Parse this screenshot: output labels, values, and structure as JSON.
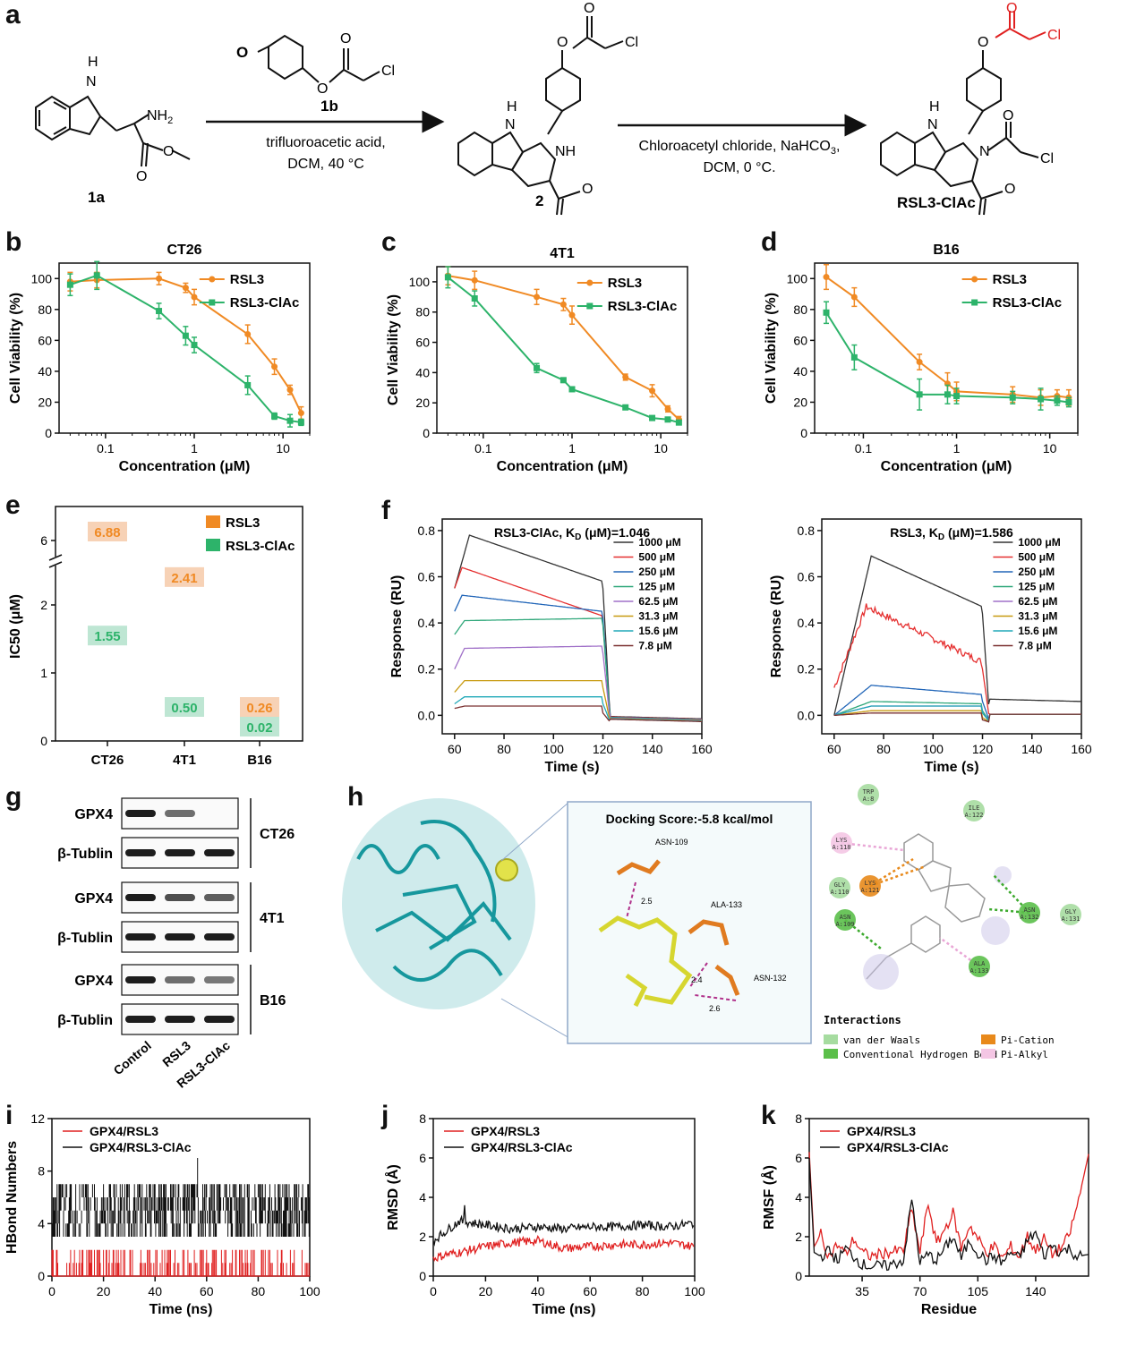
{
  "panels": {
    "a": "a",
    "b": "b",
    "c": "c",
    "d": "d",
    "e": "e",
    "f": "f",
    "g": "g",
    "h": "h",
    "i": "i",
    "j": "j",
    "k": "k"
  },
  "scheme": {
    "compound_1a": "1a",
    "compound_1b": "1b",
    "compound_2": "2",
    "product": "RSL3-ClAc",
    "nh2": "NH",
    "nh2_sub": "2",
    "nh": "NH",
    "h": "H",
    "n": "N",
    "o": "O",
    "cl": "Cl",
    "step1_line1": "trifluoroacetic acid,",
    "step1_line2": "DCM, 40 °C",
    "step2_line1": "Chloroacetyl chloride, NaHCO",
    "step2_line1_sub": "3",
    "step2_line1_end": ",",
    "step2_line2": "DCM, 0 °C."
  },
  "colors": {
    "rsl3": "#F08A24",
    "rsl3_clac": "#2DB36A",
    "red": "#E02020",
    "black": "#111111",
    "teal": "#1A9AA0",
    "label_orange_bg": "#F7D2B6",
    "label_green_bg": "#BEE6D3"
  },
  "viability": {
    "xlabel": "Concentration (μM)",
    "ylabel": "Cell Viability (%)",
    "legend": [
      "RSL3",
      "RSL3-ClAc"
    ]
  },
  "chart_data": [
    {
      "panel": "b",
      "type": "line",
      "title": "CT26",
      "xlabel": "Concentration (μM)",
      "ylabel": "Cell Viability (%)",
      "xscale": "log",
      "xlim": [
        0.03,
        20
      ],
      "ylim": [
        0,
        110
      ],
      "xticks": [
        "0.1",
        "1",
        "10"
      ],
      "yticks": [
        0,
        20,
        40,
        60,
        80,
        100
      ],
      "legend_position": "top-right",
      "series": [
        {
          "name": "RSL3",
          "x": [
            0.04,
            0.08,
            0.4,
            0.8,
            1,
            4,
            8,
            12,
            16
          ],
          "y": [
            98,
            99,
            100,
            94,
            88,
            64,
            43,
            28,
            13
          ],
          "err": [
            6,
            5,
            4,
            3,
            5,
            6,
            5,
            3,
            4
          ]
        },
        {
          "name": "RSL3-ClAc",
          "x": [
            0.04,
            0.08,
            0.4,
            0.8,
            1,
            4,
            8,
            12,
            16
          ],
          "y": [
            96,
            102,
            79,
            63,
            57,
            31,
            11,
            8,
            7
          ],
          "err": [
            7,
            9,
            5,
            6,
            5,
            6,
            2,
            4,
            2
          ]
        }
      ]
    },
    {
      "panel": "c",
      "type": "line",
      "title": "4T1",
      "xlabel": "Concentration (μM)",
      "ylabel": "Cell Viability (%)",
      "xscale": "log",
      "xlim": [
        0.03,
        20
      ],
      "ylim": [
        0,
        110
      ],
      "xticks": [
        "0.1",
        "1",
        "10"
      ],
      "yticks": [
        0,
        20,
        40,
        60,
        80,
        100
      ],
      "legend_position": "top-right",
      "series": [
        {
          "name": "RSL3",
          "x": [
            0.04,
            0.08,
            0.4,
            0.8,
            1,
            4,
            8,
            12,
            16
          ],
          "y": [
            104,
            101,
            90,
            85,
            78,
            37,
            28,
            16,
            9
          ],
          "err": [
            6,
            6,
            5,
            4,
            6,
            2,
            4,
            2,
            2
          ]
        },
        {
          "name": "RSL3-ClAc",
          "x": [
            0.04,
            0.08,
            0.4,
            0.8,
            1,
            4,
            8,
            12,
            16
          ],
          "y": [
            103,
            89,
            43,
            35,
            29,
            17,
            10,
            9,
            7
          ],
          "err": [
            7,
            5,
            3,
            1,
            1,
            1,
            1,
            1,
            1
          ]
        }
      ]
    },
    {
      "panel": "d",
      "type": "line",
      "title": "B16",
      "xlabel": "Concentration (μM)",
      "ylabel": "Cell Viability (%)",
      "xscale": "log",
      "xlim": [
        0.03,
        20
      ],
      "ylim": [
        0,
        110
      ],
      "xticks": [
        "0.1",
        "1",
        "10"
      ],
      "yticks": [
        0,
        20,
        40,
        60,
        80,
        100
      ],
      "legend_position": "top-right",
      "series": [
        {
          "name": "RSL3",
          "x": [
            0.04,
            0.08,
            0.4,
            0.8,
            1,
            4,
            8,
            12,
            16
          ],
          "y": [
            101,
            88,
            46,
            32,
            27,
            25,
            23,
            24,
            23
          ],
          "err": [
            8,
            6,
            5,
            7,
            6,
            5,
            5,
            4,
            5
          ]
        },
        {
          "name": "RSL3-ClAc",
          "x": [
            0.04,
            0.08,
            0.4,
            0.8,
            1,
            4,
            8,
            12,
            16
          ],
          "y": [
            78,
            49,
            25,
            25,
            24,
            23,
            22,
            21,
            20
          ],
          "err": [
            7,
            8,
            10,
            6,
            5,
            4,
            7,
            3,
            3
          ]
        }
      ]
    },
    {
      "panel": "e",
      "type": "table",
      "ylabel": "IC50 (μM)",
      "categories": [
        "CT26",
        "4T1",
        "B16"
      ],
      "yticks_lower": [
        0,
        1,
        2
      ],
      "ytick_upper": 6,
      "legend_position": "top-right",
      "series": [
        {
          "name": "RSL3",
          "values": [
            6.88,
            2.41,
            0.26
          ],
          "labels": [
            "6.88",
            "2.41",
            "0.26"
          ]
        },
        {
          "name": "RSL3-ClAc",
          "values": [
            1.55,
            0.5,
            0.02
          ],
          "labels": [
            "1.55",
            "0.50",
            "0.02"
          ]
        }
      ]
    },
    {
      "panel": "f-left",
      "type": "line",
      "title": "RSL3-ClAc, K",
      "title_sub": "D",
      "title_end": " (μM)=1.046",
      "xlabel": "Time (s)",
      "ylabel": "Response (RU)",
      "xlim": [
        55,
        160
      ],
      "ylim": [
        -0.08,
        0.85
      ],
      "xticks": [
        60,
        80,
        100,
        120,
        140,
        160
      ],
      "yticks": [
        "0.0",
        "0.2",
        "0.4",
        "0.6",
        "0.8"
      ],
      "series": [
        {
          "name": "1000 μM",
          "peak": 0.78,
          "peak_t": 66,
          "end": 0.58,
          "start": 0.55
        },
        {
          "name": "500 μM",
          "peak": 0.64,
          "peak_t": 63,
          "end": 0.43,
          "start": 0.55
        },
        {
          "name": "250 μM",
          "peak": 0.52,
          "peak_t": 63,
          "end": 0.45,
          "start": 0.45
        },
        {
          "name": "125 μM",
          "peak": 0.41,
          "peak_t": 64,
          "end": 0.42,
          "start": 0.35
        },
        {
          "name": "62.5 μM",
          "peak": 0.29,
          "peak_t": 64,
          "end": 0.3,
          "start": 0.2
        },
        {
          "name": "31.3 μM",
          "peak": 0.15,
          "peak_t": 64,
          "end": 0.15,
          "start": 0.1
        },
        {
          "name": "15.6 μM",
          "peak": 0.08,
          "peak_t": 64,
          "end": 0.08,
          "start": 0.05
        },
        {
          "name": "7.8 μM",
          "peak": 0.04,
          "peak_t": 64,
          "end": 0.04,
          "start": 0.03
        }
      ]
    },
    {
      "panel": "f-right",
      "type": "line",
      "title": "RSL3, K",
      "title_sub": "D",
      "title_end": " (μM)=1.586",
      "xlabel": "Time (s)",
      "ylabel": "Response (RU)",
      "xlim": [
        55,
        160
      ],
      "ylim": [
        -0.08,
        0.85
      ],
      "xticks": [
        60,
        80,
        100,
        120,
        140,
        160
      ],
      "yticks": [
        "0.0",
        "0.2",
        "0.4",
        "0.6",
        "0.8"
      ],
      "series": [
        {
          "name": "1000 μM",
          "peak": 0.69,
          "peak_t": 75,
          "end": 0.47,
          "start": 0.0
        },
        {
          "name": "500 μM",
          "peak": 0.47,
          "peak_t": 73,
          "end": 0.23,
          "start": 0.12
        },
        {
          "name": "250 μM",
          "peak": 0.13,
          "peak_t": 75,
          "end": 0.09,
          "start": 0.0
        },
        {
          "name": "125 μM",
          "peak": 0.06,
          "peak_t": 75,
          "end": 0.05,
          "start": 0.0
        },
        {
          "name": "62.5 μM",
          "peak": 0.04,
          "peak_t": 75,
          "end": 0.04,
          "start": 0.0
        },
        {
          "name": "31.3 μM",
          "peak": 0.02,
          "peak_t": 75,
          "end": 0.02,
          "start": 0.0
        },
        {
          "name": "15.6 μM",
          "peak": 0.04,
          "peak_t": 75,
          "end": 0.04,
          "start": 0.0
        },
        {
          "name": "7.8 μM",
          "peak": 0.01,
          "peak_t": 75,
          "end": 0.01,
          "start": 0.0
        }
      ]
    },
    {
      "panel": "i",
      "type": "line",
      "xlabel": "Time (ns)",
      "ylabel": "HBond Numbers",
      "xlim": [
        0,
        100
      ],
      "ylim": [
        0,
        12
      ],
      "xticks": [
        0,
        20,
        40,
        60,
        80,
        100
      ],
      "yticks": [
        0,
        4,
        8,
        12
      ],
      "legend_position": "top-left",
      "series": [
        {
          "name": "GPX4/RSL3",
          "range": [
            0,
            2
          ],
          "typical": 1
        },
        {
          "name": "GPX4/RSL3-ClAc",
          "range": [
            3,
            7
          ],
          "typical": 5,
          "max": 9
        }
      ]
    },
    {
      "panel": "j",
      "type": "line",
      "xlabel": "Time (ns)",
      "ylabel": "RMSD (Å)",
      "xlim": [
        0,
        100
      ],
      "ylim": [
        0,
        8
      ],
      "xticks": [
        0,
        20,
        40,
        60,
        80,
        100
      ],
      "yticks": [
        0,
        2,
        4,
        6,
        8
      ],
      "legend_position": "top-left",
      "series": [
        {
          "name": "GPX4/RSL3",
          "x": [
            0,
            5,
            10,
            20,
            30,
            40,
            50,
            60,
            70,
            80,
            90,
            100
          ],
          "y": [
            0.9,
            1.1,
            1.2,
            1.5,
            1.7,
            1.8,
            1.4,
            1.5,
            1.6,
            1.6,
            1.7,
            1.5
          ]
        },
        {
          "name": "GPX4/RSL3-ClAc",
          "x": [
            0,
            5,
            10,
            20,
            30,
            40,
            50,
            60,
            70,
            80,
            90,
            100
          ],
          "y": [
            1.8,
            2.3,
            2.8,
            2.6,
            2.4,
            2.5,
            2.4,
            2.5,
            2.5,
            2.6,
            2.5,
            2.7
          ]
        }
      ]
    },
    {
      "panel": "k",
      "type": "line",
      "xlabel": "Residue",
      "ylabel": "RMSF (Å)",
      "xlim": [
        3,
        172
      ],
      "ylim": [
        0,
        8
      ],
      "xticks": [
        35,
        70,
        105,
        140
      ],
      "yticks": [
        0,
        2,
        4,
        6,
        8
      ],
      "legend_position": "top-left",
      "series": [
        {
          "name": "GPX4/RSL3",
          "x": [
            3,
            6,
            10,
            15,
            20,
            25,
            30,
            35,
            40,
            50,
            60,
            65,
            70,
            75,
            80,
            85,
            90,
            95,
            100,
            105,
            110,
            115,
            120,
            125,
            130,
            135,
            140,
            145,
            150,
            155,
            160,
            165,
            172
          ],
          "y": [
            6.3,
            1.5,
            2.1,
            1.0,
            1.6,
            1.1,
            1.9,
            1.2,
            1.0,
            1.2,
            1.3,
            3.4,
            1.2,
            3.7,
            1.6,
            2.4,
            3.2,
            1.4,
            2.6,
            1.9,
            1.2,
            1.5,
            0.9,
            1.5,
            1.0,
            2.0,
            1.3,
            1.9,
            1.1,
            1.4,
            2.0,
            3.5,
            6.2
          ]
        },
        {
          "name": "GPX4/RSL3-ClAc",
          "x": [
            3,
            6,
            10,
            15,
            20,
            25,
            30,
            35,
            40,
            50,
            60,
            65,
            70,
            75,
            80,
            85,
            90,
            95,
            100,
            105,
            110,
            115,
            120,
            125,
            130,
            135,
            140,
            145,
            150,
            155,
            160,
            165,
            172
          ],
          "y": [
            6.0,
            1.2,
            1.0,
            1.3,
            0.8,
            1.4,
            1.0,
            0.6,
            0.5,
            0.5,
            0.8,
            3.9,
            0.7,
            1.1,
            0.8,
            1.4,
            2.0,
            0.9,
            1.8,
            1.2,
            0.8,
            1.0,
            0.7,
            1.2,
            0.9,
            1.8,
            2.2,
            1.0,
            1.6,
            1.2,
            1.4,
            1.0,
            1.1
          ]
        }
      ]
    }
  ],
  "western": {
    "rows": [
      "GPX4",
      "β-Tublin",
      "GPX4",
      "β-Tublin",
      "GPX4",
      "β-Tublin"
    ],
    "cell_lines": [
      "CT26",
      "4T1",
      "B16"
    ],
    "lanes": [
      "Control",
      "RSL3",
      "RSL3-ClAc"
    ],
    "gpx4_intensity": [
      [
        1.0,
        0.5,
        0.0
      ],
      [
        1.0,
        0.7,
        0.6
      ],
      [
        1.0,
        0.5,
        0.45
      ]
    ]
  },
  "docking": {
    "score": "Docking Score:-5.8 kcal/mol",
    "residues": [
      "ASN-109",
      "ALA-133",
      "ASN-132"
    ],
    "distances": [
      "2.5",
      "2.4",
      "2.6"
    ],
    "interaction_residues": [
      {
        "label": "TRP\nA:8",
        "kind": "vdw"
      },
      {
        "label": "ILE\nA:122",
        "kind": "vdw"
      },
      {
        "label": "LYS\nA:118",
        "kind": "pialkyl"
      },
      {
        "label": "GLY\nA:110",
        "kind": "vdw"
      },
      {
        "label": "LYS\nA:121",
        "kind": "pication"
      },
      {
        "label": "ASN\nA:132",
        "kind": "hbond"
      },
      {
        "label": "GLY\nA:131",
        "kind": "vdw"
      },
      {
        "label": "ASN\nA:109",
        "kind": "hbond"
      },
      {
        "label": "ALA\nA:133",
        "kind": "hbond"
      }
    ],
    "legend_title": "Interactions",
    "legend": [
      {
        "label": "van der Waals",
        "color": "#A6DCA0"
      },
      {
        "label": "Conventional Hydrogen Bond",
        "color": "#5BBF4A"
      },
      {
        "label": "Pi-Cation",
        "color": "#E8891B"
      },
      {
        "label": "Pi-Alkyl",
        "color": "#F4C6E4"
      }
    ]
  }
}
